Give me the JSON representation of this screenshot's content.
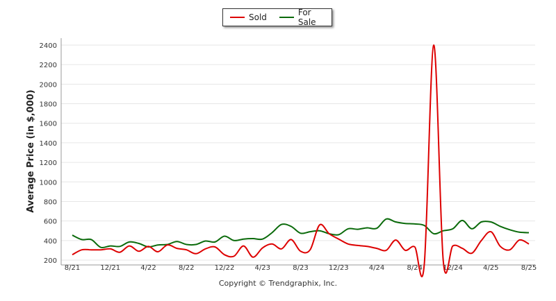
{
  "chart_data": {
    "type": "line",
    "title": "",
    "xlabel": "",
    "ylabel": "Average Price (in $,000)",
    "ylim": [
      200,
      2400
    ],
    "yticks": [
      200,
      400,
      600,
      800,
      1000,
      1200,
      1400,
      1600,
      1800,
      2000,
      2200,
      2400
    ],
    "xticks": [
      "8/21",
      "12/21",
      "4/22",
      "8/22",
      "12/22",
      "4/23",
      "8/23",
      "12/23",
      "4/24",
      "8/24",
      "12/24",
      "4/25",
      "8/25"
    ],
    "grid": true,
    "legend_position": "top-center",
    "categories": [
      "8/21",
      "9/21",
      "10/21",
      "11/21",
      "12/21",
      "1/22",
      "2/22",
      "3/22",
      "4/22",
      "5/22",
      "6/22",
      "7/22",
      "8/22",
      "9/22",
      "10/22",
      "11/22",
      "12/22",
      "1/23",
      "2/23",
      "3/23",
      "4/23",
      "5/23",
      "6/23",
      "7/23",
      "8/23",
      "9/23",
      "10/23",
      "11/23",
      "12/23",
      "1/24",
      "2/24",
      "3/24",
      "4/24",
      "5/24",
      "6/24",
      "7/24",
      "8/24",
      "9/24",
      "10/24",
      "11/24",
      "12/24",
      "1/25",
      "2/25",
      "3/25",
      "4/25",
      "5/25",
      "6/25",
      "7/25",
      "8/25"
    ],
    "series": [
      {
        "name": "Sold",
        "color": "#dd0000",
        "values": [
          255,
          305,
          305,
          305,
          315,
          280,
          345,
          290,
          340,
          285,
          355,
          320,
          305,
          265,
          315,
          335,
          255,
          240,
          345,
          230,
          325,
          365,
          315,
          410,
          290,
          305,
          560,
          470,
          415,
          365,
          350,
          340,
          320,
          300,
          405,
          300,
          335,
          150,
          2400,
          190,
          345,
          320,
          270,
          400,
          490,
          340,
          305,
          405,
          365
        ]
      },
      {
        "name": "For Sale",
        "color": "#0a6a0a",
        "values": [
          455,
          410,
          410,
          330,
          345,
          340,
          385,
          370,
          335,
          355,
          360,
          390,
          360,
          360,
          395,
          385,
          445,
          400,
          415,
          420,
          415,
          480,
          565,
          545,
          475,
          490,
          500,
          470,
          460,
          520,
          515,
          530,
          525,
          620,
          590,
          575,
          570,
          555,
          470,
          500,
          520,
          605,
          520,
          590,
          590,
          545,
          510,
          485,
          480
        ]
      }
    ]
  },
  "legend": {
    "sold_label": "Sold",
    "for_sale_label": "For Sale"
  },
  "copyright": "Copyright © Trendgraphix, Inc."
}
